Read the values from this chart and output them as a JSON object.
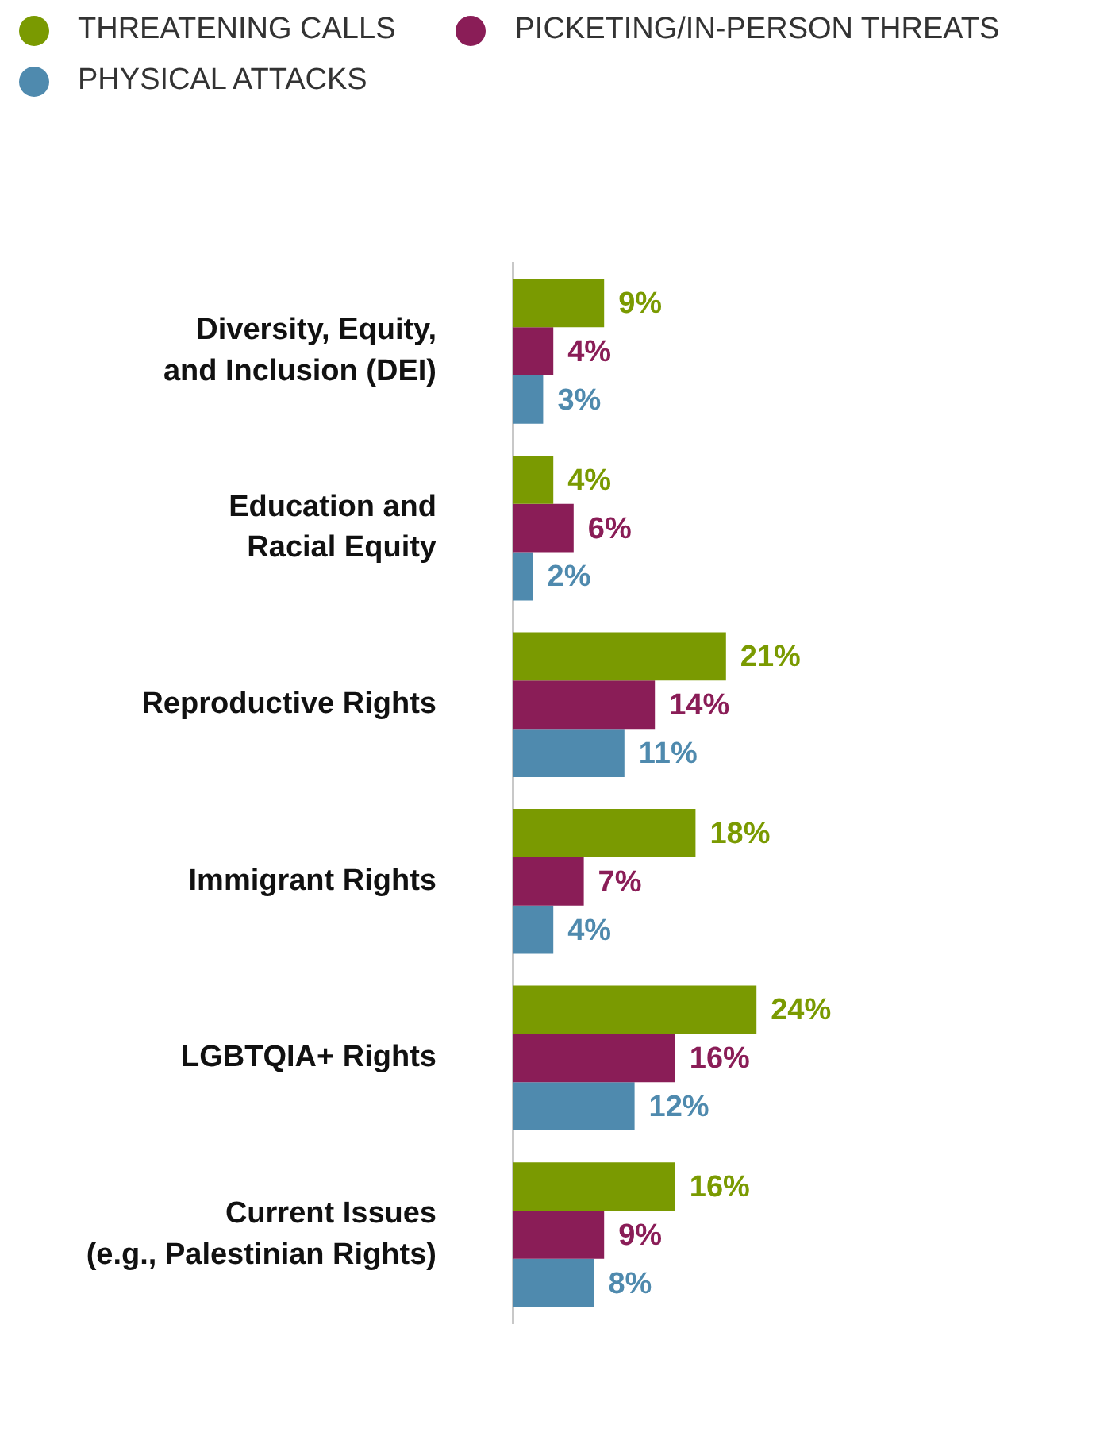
{
  "chart_data": {
    "type": "bar",
    "orientation": "horizontal",
    "categories": [
      "Diversity, Equity,\nand Inclusion (DEI)",
      "Education and\nRacial Equity",
      "Reproductive Rights",
      "Immigrant Rights",
      "LGBTQIA+ Rights",
      "Current Issues\n(e.g., Palestinian Rights)"
    ],
    "series": [
      {
        "name": "THREATENING CALLS",
        "color": "#7a9a01",
        "values": [
          9,
          4,
          21,
          18,
          24,
          16
        ],
        "value_labels": [
          "9%",
          "4%",
          "21%",
          "18%",
          "24%",
          "16%"
        ]
      },
      {
        "name": "PICKETING/IN-PERSON THREATS",
        "color": "#8a1d57",
        "values": [
          4,
          6,
          14,
          7,
          16,
          9
        ],
        "value_labels": [
          "4%",
          "6%",
          "14%",
          "7%",
          "16%",
          "9%"
        ]
      },
      {
        "name": "PHYSICAL ATTACKS",
        "color": "#4f8aae",
        "values": [
          3,
          2,
          11,
          4,
          12,
          8
        ],
        "value_labels": [
          "3%",
          "2%",
          "11%",
          "4%",
          "12%",
          "8%"
        ]
      }
    ],
    "grid": false,
    "legend": "top left",
    "tick_labels": "y"
  }
}
